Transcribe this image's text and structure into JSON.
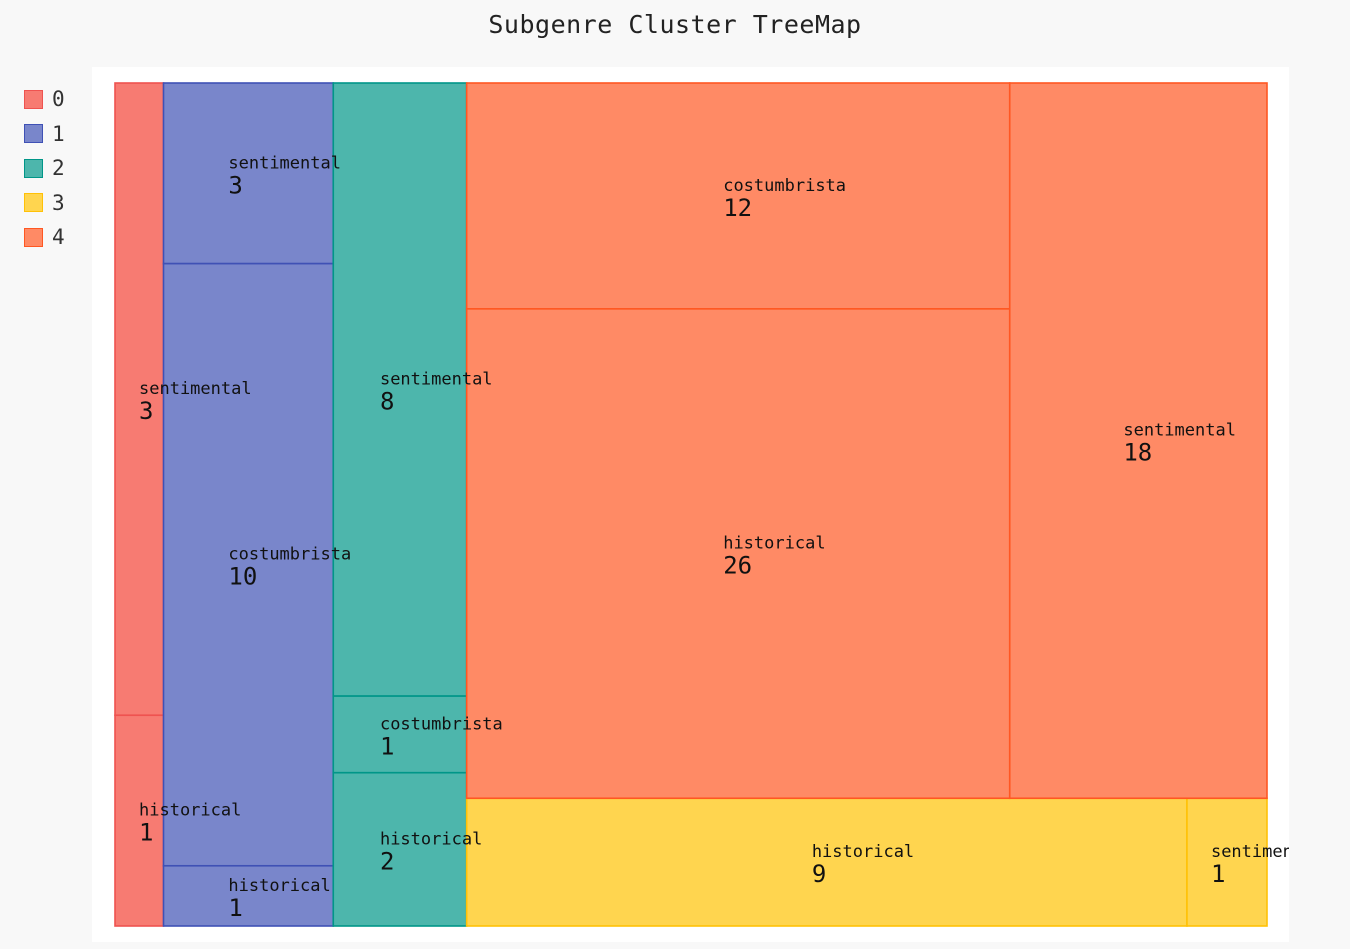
{
  "chart_data": {
    "type": "treemap",
    "title": "Subgenre Cluster TreeMap",
    "legend_position": "top-left",
    "groups": [
      {
        "name": "0",
        "color": "#f77b72",
        "border": "#ef5350",
        "children": [
          {
            "label": "sentimental",
            "value": 3
          },
          {
            "label": "historical",
            "value": 1
          }
        ]
      },
      {
        "name": "1",
        "color": "#7986cb",
        "border": "#3f51b5",
        "children": [
          {
            "label": "sentimental",
            "value": 3
          },
          {
            "label": "costumbrista",
            "value": 10
          },
          {
            "label": "historical",
            "value": 1
          }
        ]
      },
      {
        "name": "2",
        "color": "#4db6ac",
        "border": "#009688",
        "children": [
          {
            "label": "sentimental",
            "value": 8
          },
          {
            "label": "costumbrista",
            "value": 1
          },
          {
            "label": "historical",
            "value": 2
          }
        ]
      },
      {
        "name": "3",
        "color": "#ffd54f",
        "border": "#ffc107",
        "children": [
          {
            "label": "historical",
            "value": 9
          },
          {
            "label": "sentimental",
            "value": 1
          }
        ]
      },
      {
        "name": "4",
        "color": "#ff8a65",
        "border": "#ff5722",
        "children": [
          {
            "label": "costumbrista",
            "value": 12
          },
          {
            "label": "historical",
            "value": 26
          },
          {
            "label": "sentimental",
            "value": 18
          }
        ]
      }
    ]
  }
}
